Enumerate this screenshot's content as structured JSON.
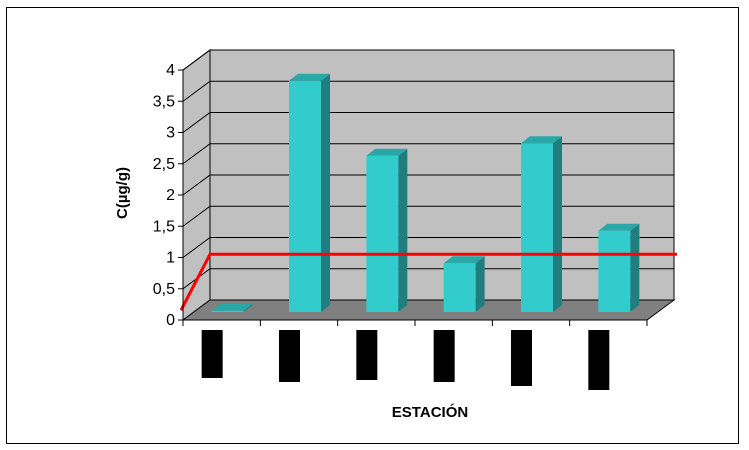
{
  "chart_data": {
    "type": "bar",
    "title": "",
    "xlabel": "ESTACIÓN",
    "ylabel": "C(µg/g)",
    "ylim": [
      0,
      4
    ],
    "yticks": [
      "0",
      "0,5",
      "1",
      "1,5",
      "2",
      "2,5",
      "3",
      "3,5",
      "4"
    ],
    "categories": [
      "",
      "",
      "",
      "",
      "",
      ""
    ],
    "series": [
      {
        "values": [
          0.02,
          3.7,
          2.5,
          0.78,
          2.7,
          1.3
        ]
      }
    ],
    "reference_line": {
      "value": 0.7
    },
    "grid": true,
    "legend": "none",
    "colors": {
      "bar_front": "#33CCCC",
      "bar_side": "#1F7F7F",
      "bar_top": "#2AA8A8",
      "plot_wall": "#C0C0C0",
      "floor": "#808080",
      "reference_line": "#FF0000",
      "category_label_block": "#000000"
    }
  }
}
